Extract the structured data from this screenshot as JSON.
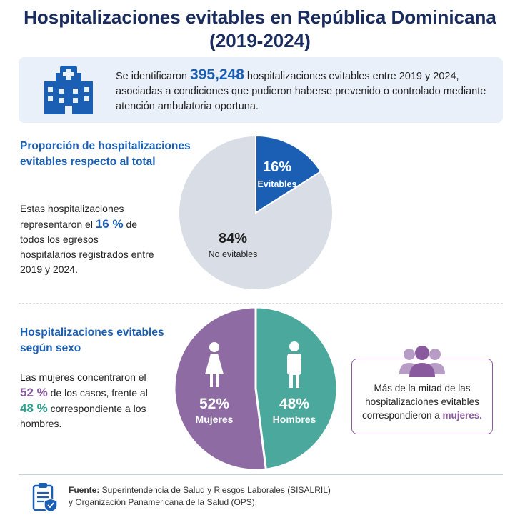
{
  "header": {
    "title_line1": "Hospitalizaciones evitables en República Dominicana",
    "title_line2": "(2019-2024)"
  },
  "banner": {
    "icon": "hospital-icon",
    "text_before": "Se identificaron ",
    "number": "395,248",
    "text_after": " hospitalizaciones evitables entre 2019 y 2024, asociadas a condiciones que pudieron haberse prevenido o controlado mediante atención ambulatoria oportuna."
  },
  "section1": {
    "title": "Proporción de hospitalizaciones evitables respecto al total",
    "text_before": "Estas hospitalizaciones representaron el ",
    "highlight": "16 %",
    "text_after": " de todos los egresos hospitalarios registrados entre 2019 y 2024."
  },
  "section2": {
    "title": "Hospitalizaciones evitables según sexo",
    "text_a": "Las mujeres concentraron el ",
    "hl_women": "52 %",
    "text_b": " de los casos, frente al ",
    "hl_men": "48 %",
    "text_c": " correspondiente a los hombres."
  },
  "callout": {
    "icon": "group-people-icon",
    "text_before": "Más de la mitad de las hospitalizaciones evitables correspondieron a ",
    "highlight": "mujeres.",
    "color": "#8a5a9e"
  },
  "source": {
    "icon": "clipboard-shield-icon",
    "label": "Fuente:",
    "line1": " Superintendencia de Salud y Riesgos Laborales (SISALRIL)",
    "line2": "y Organización Panamericana de la Salud (OPS)."
  },
  "chart_data": [
    {
      "type": "pie",
      "slices": [
        {
          "label": "Evitables",
          "value": 16,
          "value_label": "16%",
          "color": "#1a5fb4"
        },
        {
          "label": "No evitables",
          "value": 84,
          "value_label": "84%",
          "color": "#d9dde6"
        }
      ]
    },
    {
      "type": "pie",
      "slices": [
        {
          "label": "Hombres",
          "value": 48,
          "value_label": "48%",
          "color": "#4ba89c",
          "icon": "man-icon"
        },
        {
          "label": "Mujeres",
          "value": 52,
          "value_label": "52%",
          "color": "#8e6ba3",
          "icon": "woman-icon"
        }
      ]
    }
  ]
}
